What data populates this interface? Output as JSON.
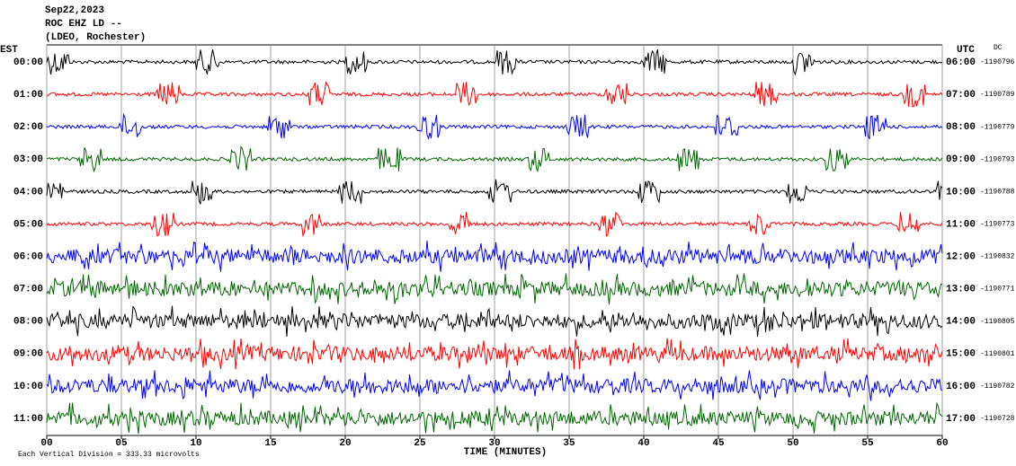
{
  "chart_data": {
    "type": "helicorder",
    "title": "Sep22,2023",
    "subtitle": "ROC EHZ LD --",
    "station": "(LDEO, Rochester)",
    "left_axis_label": "EST",
    "right_axis_label": "UTC",
    "dc_label": "DC",
    "x_label": "TIME (MINUTES)",
    "footer": "Each Vertical Division = 333.33 microvolts",
    "xlim": [
      0,
      60
    ],
    "xticks": [
      {
        "value": 0,
        "label": "00"
      },
      {
        "value": 5,
        "label": "05"
      },
      10,
      15,
      20,
      25,
      30,
      35,
      40,
      45,
      50,
      55,
      60
    ],
    "grid": true,
    "rows": [
      {
        "est": "00:00",
        "utc": "06:00",
        "offset": -1190796,
        "color": "#000000"
      },
      {
        "est": "01:00",
        "utc": "07:00",
        "offset": -1190789,
        "color": "#ff0000"
      },
      {
        "est": "02:00",
        "utc": "08:00",
        "offset": -1190779,
        "color": "#0000ff"
      },
      {
        "est": "03:00",
        "utc": "09:00",
        "offset": -1190793,
        "color": "#006600"
      },
      {
        "est": "04:00",
        "utc": "10:00",
        "offset": -1190788,
        "color": "#000000"
      },
      {
        "est": "05:00",
        "utc": "11:00",
        "offset": -1190773,
        "color": "#ff0000"
      },
      {
        "est": "06:00",
        "utc": "12:00",
        "offset": -1190832,
        "color": "#0000ff"
      },
      {
        "est": "07:00",
        "utc": "13:00",
        "offset": -1190771,
        "color": "#006600"
      },
      {
        "est": "08:00",
        "utc": "14:00",
        "offset": -1190805,
        "color": "#000000"
      },
      {
        "est": "09:00",
        "utc": "15:00",
        "offset": -1190801,
        "color": "#ff0000"
      },
      {
        "est": "10:00",
        "utc": "16:00",
        "offset": -1190782,
        "color": "#0000ff"
      },
      {
        "est": "11:00",
        "utc": "17:00",
        "offset": -1190728,
        "color": "#006600"
      }
    ]
  }
}
